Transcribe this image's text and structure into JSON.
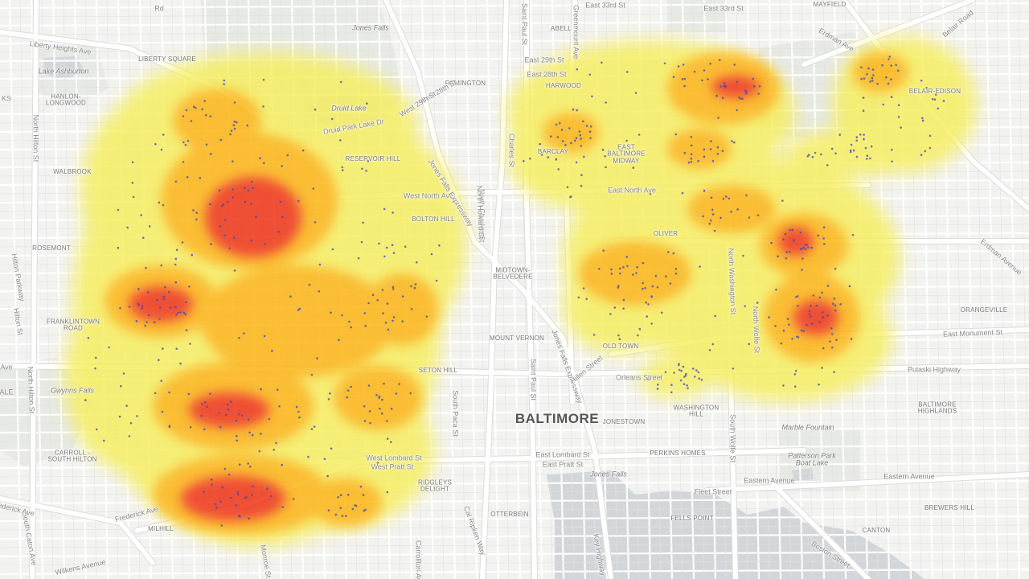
{
  "map": {
    "city_label": "BALTIMORE",
    "colors": {
      "background": "#f2f2f0",
      "park": "#e6e9e4",
      "water": "#d3d6d9",
      "road_minor": "#ffffff",
      "road_major": "#ffffff",
      "heat_low": "#f6ee63",
      "heat_mid": "#fcb516",
      "heat_high": "#ef3617",
      "point": "#3b4bb8"
    },
    "labels": [
      {
        "id": "mayfield",
        "text": "MAYFIELD",
        "kind": "hood"
      },
      {
        "id": "abell",
        "text": "ABELL",
        "kind": "hood"
      },
      {
        "id": "harwood",
        "text": "HARWOOD",
        "kind": "hood"
      },
      {
        "id": "remington",
        "text": "REMINGTON",
        "kind": "hood"
      },
      {
        "id": "liberty-square",
        "text": "LIBERTY SQUARE",
        "kind": "hood"
      },
      {
        "id": "hanlon-longwood",
        "text": "HANLON-\nLONGWOOD",
        "kind": "hood"
      },
      {
        "id": "walbrook",
        "text": "WALBROOK",
        "kind": "hood"
      },
      {
        "id": "rosemont",
        "text": "ROSEMONT",
        "kind": "hood"
      },
      {
        "id": "franklintown-road",
        "text": "FRANKLINTOWN\nROAD",
        "kind": "hood"
      },
      {
        "id": "carroll-south-hilton",
        "text": "CARROLL -\nSOUTH HILTON",
        "kind": "hood"
      },
      {
        "id": "bolton-hill",
        "text": "BOLTON HILL",
        "kind": "hood"
      },
      {
        "id": "midtown-belvedere",
        "text": "MIDTOWN-\nBELVEDERE",
        "kind": "hood"
      },
      {
        "id": "mount-vernon",
        "text": "MOUNT VERNON",
        "kind": "hood"
      },
      {
        "id": "seton-hill",
        "text": "SETON HILL",
        "kind": "hood"
      },
      {
        "id": "ridgleys-delight",
        "text": "RIDGLEYS\nDELIGHT",
        "kind": "hood"
      },
      {
        "id": "otterbein",
        "text": "OTTERBEIN",
        "kind": "hood"
      },
      {
        "id": "jonestown",
        "text": "JONESTOWN",
        "kind": "hood"
      },
      {
        "id": "washington-hill",
        "text": "WASHINGTON\nHILL",
        "kind": "hood"
      },
      {
        "id": "perkins-homes",
        "text": "PERKINS HOMES",
        "kind": "hood"
      },
      {
        "id": "fells-point",
        "text": "FELLS POINT",
        "kind": "hood"
      },
      {
        "id": "canton",
        "text": "CANTON",
        "kind": "hood"
      },
      {
        "id": "brewers-hill",
        "text": "BREWERS HILL",
        "kind": "hood"
      },
      {
        "id": "baltimore-highlands",
        "text": "BALTIMORE\nHIGHLANDS",
        "kind": "hood"
      },
      {
        "id": "orangeville",
        "text": "ORANGEVILLE",
        "kind": "hood"
      },
      {
        "id": "old-town",
        "text": "OLD TOWN",
        "kind": "hood"
      },
      {
        "id": "oliver",
        "text": "OLIVER",
        "kind": "hood"
      },
      {
        "id": "east-baltimore-midway",
        "text": "EAST\nBALTIMORE\nMIDWAY",
        "kind": "hood"
      },
      {
        "id": "barclay",
        "text": "BARCLAY",
        "kind": "hood"
      },
      {
        "id": "belair-edison",
        "text": "BELAIR-EDISON",
        "kind": "hood"
      },
      {
        "id": "reservoir-hill",
        "text": "RESERVOIR HILL",
        "kind": "hood"
      },
      {
        "id": "lake-ashburton",
        "text": "Lake Ashburton",
        "kind": "water"
      },
      {
        "id": "druid-lake",
        "text": "Druid Lake",
        "kind": "water"
      },
      {
        "id": "jones-falls-n",
        "text": "Jones Falls",
        "kind": "water"
      },
      {
        "id": "jones-falls-s",
        "text": "Jones Falls",
        "kind": "water"
      },
      {
        "id": "gwynns-falls",
        "text": "Gwynns Falls",
        "kind": "water"
      },
      {
        "id": "marble-fountain",
        "text": "Marble Fountain",
        "kind": "water"
      },
      {
        "id": "patterson-park-boat-lake",
        "text": "Patterson Park\nBoat Lake",
        "kind": "water"
      },
      {
        "id": "liberty-heights-ave",
        "text": "Liberty Heights Ave",
        "kind": "street"
      },
      {
        "id": "east-33rd-st-a",
        "text": "East 33rd St",
        "kind": "street"
      },
      {
        "id": "east-33rd-st-b",
        "text": "East 33rd St",
        "kind": "street"
      },
      {
        "id": "east-29th-st",
        "text": "East 29th St",
        "kind": "street"
      },
      {
        "id": "east-28th-st",
        "text": "East 28th St",
        "kind": "street"
      },
      {
        "id": "west-28th-st",
        "text": "West 28th St",
        "kind": "street"
      },
      {
        "id": "west-29th-st",
        "text": "West 29th St",
        "kind": "street"
      },
      {
        "id": "west-north-ave",
        "text": "West North Ave",
        "kind": "street"
      },
      {
        "id": "east-north-ave",
        "text": "East North Ave",
        "kind": "street"
      },
      {
        "id": "druid-park-lake-dr",
        "text": "Druid Park Lake Dr",
        "kind": "street"
      },
      {
        "id": "jones-falls-expressway-n",
        "text": "Jones Falls Expressway",
        "kind": "street"
      },
      {
        "id": "jones-falls-expressway-s",
        "text": "Jones Falls Expressway",
        "kind": "street"
      },
      {
        "id": "saint-paul-st-n",
        "text": "Saint Paul St",
        "kind": "street"
      },
      {
        "id": "saint-paul-st-s",
        "text": "Saint Paul St",
        "kind": "street"
      },
      {
        "id": "greenmount-ave",
        "text": "Greenmount Ave",
        "kind": "street"
      },
      {
        "id": "north-charles-st",
        "text": "North Charles St",
        "kind": "street"
      },
      {
        "id": "charles-st",
        "text": "Charles St",
        "kind": "street"
      },
      {
        "id": "north-howard-st",
        "text": "North Howard St",
        "kind": "street"
      },
      {
        "id": "north-hilton-st-n",
        "text": "North Hilton St",
        "kind": "street"
      },
      {
        "id": "north-hilton-st-s",
        "text": "North Hilton St",
        "kind": "street"
      },
      {
        "id": "hilton-pkwy",
        "text": "Hilton Parkway",
        "kind": "street"
      },
      {
        "id": "hilton-st",
        "text": "Hilton St",
        "kind": "street"
      },
      {
        "id": "south-caton-ave",
        "text": "South Caton Ave",
        "kind": "street"
      },
      {
        "id": "frederick-ave-a",
        "text": "ederick Ave",
        "kind": "street"
      },
      {
        "id": "frederick-ave-b",
        "text": "Frederick Ave",
        "kind": "street"
      },
      {
        "id": "wilkens-ave",
        "text": "Wilkens Avenue",
        "kind": "street"
      },
      {
        "id": "west-lombard-st",
        "text": "West Lombard St",
        "kind": "street"
      },
      {
        "id": "west-pratt-st",
        "text": "West Pratt St",
        "kind": "street"
      },
      {
        "id": "east-lombard-st",
        "text": "East Lombard St",
        "kind": "street"
      },
      {
        "id": "east-pratt-st",
        "text": "East Pratt St",
        "kind": "street"
      },
      {
        "id": "fleet-street",
        "text": "Fleet Street",
        "kind": "street"
      },
      {
        "id": "eastern-avenue-a",
        "text": "Eastern Avenue",
        "kind": "street"
      },
      {
        "id": "eastern-avenue-b",
        "text": "Eastern Avenue",
        "kind": "street"
      },
      {
        "id": "east-monument-st",
        "text": "East Monument St",
        "kind": "street"
      },
      {
        "id": "pulaski-highway",
        "text": "Pulaski Highway",
        "kind": "street"
      },
      {
        "id": "erdman-ave-n",
        "text": "Erdman Ave",
        "kind": "street"
      },
      {
        "id": "erdman-ave-s",
        "text": "Erdman Avenue",
        "kind": "street"
      },
      {
        "id": "belair-road",
        "text": "Belair Road",
        "kind": "street"
      },
      {
        "id": "north-washington-st",
        "text": "North Washington St",
        "kind": "street"
      },
      {
        "id": "south-wolfe-st",
        "text": "South Wolfe St",
        "kind": "street"
      },
      {
        "id": "north-wolfe-st",
        "text": "North Wolfe St",
        "kind": "street"
      },
      {
        "id": "hillen-street",
        "text": "Hillen Street",
        "kind": "street"
      },
      {
        "id": "orleans-street",
        "text": "Orleans Street",
        "kind": "street"
      },
      {
        "id": "boston-street",
        "text": "Boston Street",
        "kind": "street"
      },
      {
        "id": "key-highway",
        "text": "Key Highway",
        "kind": "street"
      },
      {
        "id": "south-paca-st",
        "text": "South Paca St",
        "kind": "street"
      },
      {
        "id": "cal-ripken-way",
        "text": "Cal Ripken Way",
        "kind": "street"
      },
      {
        "id": "monroe-st",
        "text": "Monroe St",
        "kind": "street"
      },
      {
        "id": "west-ave",
        "text": "Ave",
        "kind": "street"
      },
      {
        "id": "west-ale",
        "text": "ALE",
        "kind": "street"
      },
      {
        "id": "west-ks",
        "text": "KS",
        "kind": "street"
      },
      {
        "id": "north-rd",
        "text": "Rd",
        "kind": "street"
      },
      {
        "id": "carrollton-ave",
        "text": "Carrollton Ave",
        "kind": "street"
      },
      {
        "id": "milhill",
        "text": "MILHILL",
        "kind": "hood"
      }
    ]
  }
}
